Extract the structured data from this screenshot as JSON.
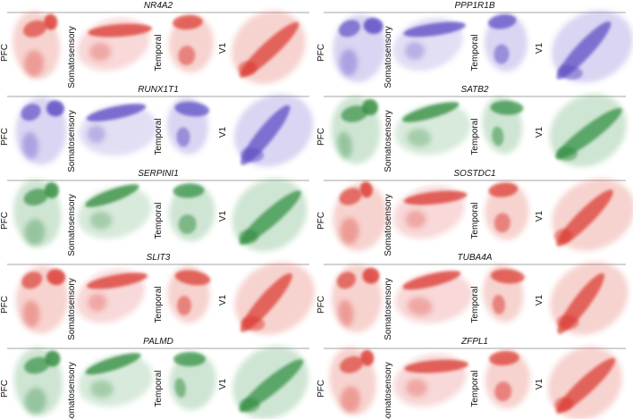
{
  "regions": [
    "PFC",
    "Somatosensory",
    "Temporal",
    "V1"
  ],
  "panels": [
    {
      "gene": "NR4A2",
      "color": "#d9342b"
    },
    {
      "gene": "PPP1R1B",
      "color": "#5646c2"
    },
    {
      "gene": "RUNX1T1",
      "color": "#5646c2"
    },
    {
      "gene": "SATB2",
      "color": "#2b8a3a"
    },
    {
      "gene": "SERPINI1",
      "color": "#2b8a3a"
    },
    {
      "gene": "SOSTDC1",
      "color": "#d9342b"
    },
    {
      "gene": "SLIT3",
      "color": "#d9342b"
    },
    {
      "gene": "TUBA4A",
      "color": "#d9342b"
    },
    {
      "gene": "PALMD",
      "color": "#2b8a3a"
    },
    {
      "gene": "ZFPL1",
      "color": "#d9342b"
    }
  ]
}
